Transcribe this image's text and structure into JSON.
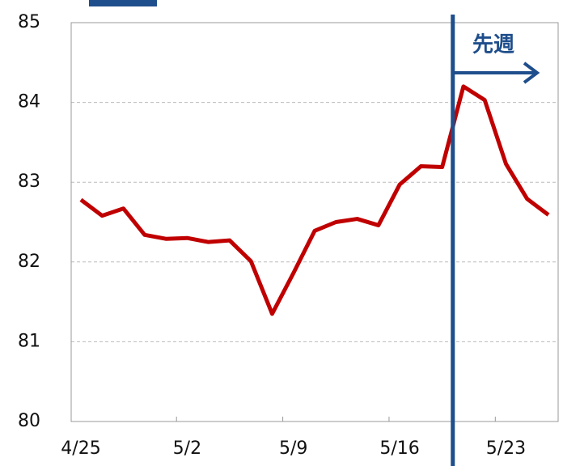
{
  "chart_data": {
    "type": "line",
    "categories": [
      "4/25",
      null,
      null,
      null,
      null,
      "5/2",
      null,
      null,
      null,
      null,
      "5/9",
      null,
      null,
      null,
      null,
      "5/16",
      null,
      null,
      null,
      null,
      "5/23",
      null,
      null
    ],
    "series": [
      {
        "name": "",
        "color": "#c00000",
        "values": [
          82.78,
          82.58,
          82.67,
          82.34,
          82.29,
          82.3,
          82.25,
          82.27,
          82.01,
          81.35,
          81.86,
          82.39,
          82.5,
          82.54,
          82.46,
          82.97,
          83.2,
          83.19,
          84.2,
          84.03,
          83.23,
          82.79,
          82.59
        ]
      }
    ],
    "ylim": [
      80,
      85
    ],
    "yticks": [
      80,
      81,
      82,
      83,
      84,
      85
    ],
    "grid": true,
    "annotation": "先週",
    "annotation_color": "#1f4e8c"
  }
}
